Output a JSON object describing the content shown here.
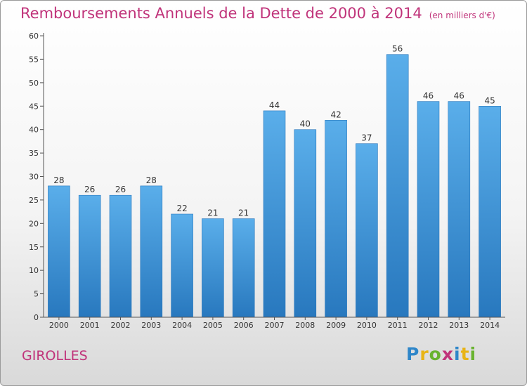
{
  "header": {
    "title": "Remboursements Annuels de la Dette de 2000 à 2014",
    "unit": "(en milliers d'€)"
  },
  "footer": {
    "place": "GIROLLES",
    "logo": [
      "P",
      "r",
      "o",
      "x",
      "i",
      "t",
      "i"
    ],
    "logo_colors": [
      "#2e86c9",
      "#e8b416",
      "#69b32f",
      "#c0337a",
      "#2e86c9",
      "#e8b416",
      "#69b32f"
    ]
  },
  "chart_data": {
    "type": "bar",
    "title": "Remboursements Annuels de la Dette de 2000 à 2014",
    "subtitle": "(en milliers d'€)",
    "categories": [
      "2000",
      "2001",
      "2002",
      "2003",
      "2004",
      "2005",
      "2006",
      "2007",
      "2008",
      "2009",
      "2010",
      "2011",
      "2012",
      "2013",
      "2014"
    ],
    "values": [
      28,
      26,
      26,
      28,
      22,
      21,
      21,
      44,
      40,
      42,
      37,
      56,
      46,
      46,
      45
    ],
    "ylim": [
      0,
      60
    ],
    "yticks": [
      0,
      5,
      10,
      15,
      20,
      25,
      30,
      35,
      40,
      45,
      50,
      55,
      60
    ],
    "grid": false,
    "bar_color": "#3a8fd6"
  }
}
